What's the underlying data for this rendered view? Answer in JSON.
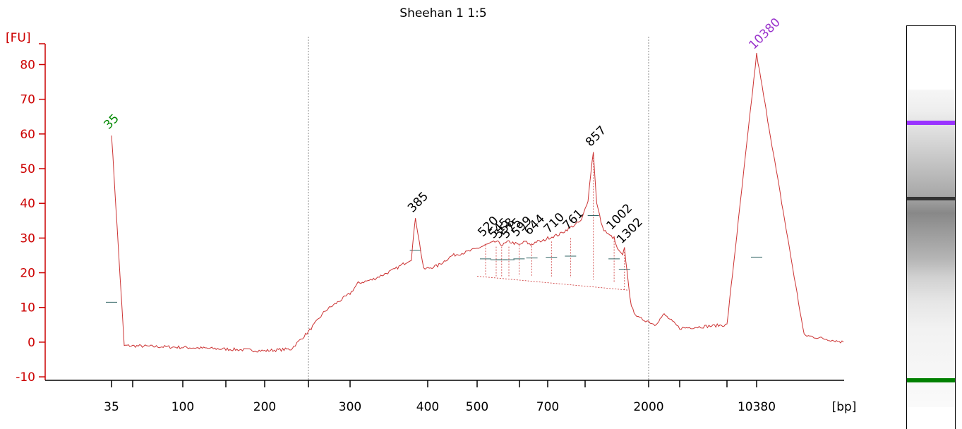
{
  "chart_data": {
    "type": "line",
    "title": "Sheehan 1 1:5",
    "ylabel": "[FU]",
    "xlabel": "[bp]",
    "ylim": [
      -11,
      86
    ],
    "yticks": [
      "-10",
      "0",
      "10",
      "20",
      "30",
      "40",
      "50",
      "60",
      "70",
      "80"
    ],
    "xticks": [
      "35",
      "100",
      "200",
      "300",
      "400",
      "500",
      "700",
      "2000",
      "10380"
    ],
    "series": [
      {
        "color": "#cc3333",
        "x": [
          35,
          50,
          100,
          150,
          200,
          230,
          250,
          270,
          300,
          311,
          330,
          360,
          380,
          385,
          395,
          420,
          450,
          480,
          500,
          520,
          545,
          560,
          575,
          600,
          620,
          640,
          660,
          680,
          700,
          730,
          760,
          790,
          820,
          840,
          857,
          880,
          920,
          960,
          1002,
          1050,
          1150,
          1250,
          1302,
          1380,
          1500,
          1700,
          2000,
          2400,
          3000,
          4000,
          6000,
          10380,
          14000,
          17000
        ],
        "y": [
          60,
          -1,
          -1.5,
          -2,
          -2.5,
          -2,
          3,
          9,
          14,
          17,
          18,
          21,
          24,
          36,
          21,
          22,
          25,
          26,
          27,
          28,
          29,
          28,
          29,
          28,
          29,
          28,
          29,
          29,
          30,
          31,
          33,
          35,
          41,
          49,
          55,
          40,
          33,
          31,
          30,
          28,
          26,
          25,
          27,
          20,
          10,
          7,
          6,
          5,
          8,
          4,
          5,
          83,
          2,
          0
        ]
      }
    ],
    "peaks": [
      {
        "label": "35",
        "x": 35,
        "y": 60,
        "color": "#008800"
      },
      {
        "label": "385",
        "x": 385,
        "y": 36,
        "color": "#000000"
      },
      {
        "label": "520",
        "x": 520,
        "y": 29,
        "color": "#000000"
      },
      {
        "label": "545",
        "x": 545,
        "y": 28.5,
        "color": "#000000"
      },
      {
        "label": "558",
        "x": 558,
        "y": 28.5,
        "color": "#000000"
      },
      {
        "label": "575",
        "x": 575,
        "y": 28.5,
        "color": "#000000"
      },
      {
        "label": "599",
        "x": 599,
        "y": 29,
        "color": "#000000"
      },
      {
        "label": "644",
        "x": 644,
        "y": 29.5,
        "color": "#000000"
      },
      {
        "label": "710",
        "x": 710,
        "y": 30,
        "color": "#000000"
      },
      {
        "label": "761",
        "x": 761,
        "y": 31,
        "color": "#000000"
      },
      {
        "label": "857",
        "x": 857,
        "y": 55,
        "color": "#000000"
      },
      {
        "label": "1002",
        "x": 1002,
        "y": 31,
        "color": "#000000"
      },
      {
        "label": "1302",
        "x": 1302,
        "y": 27,
        "color": "#000000"
      },
      {
        "label": "10380",
        "x": 10380,
        "y": 83,
        "color": "#9933cc"
      }
    ],
    "markers": [
      35,
      10380
    ],
    "grid": false,
    "legend": "none"
  },
  "gel": {
    "bands": [
      {
        "label": "10380",
        "color": "#9933ff"
      },
      {
        "label": "857",
        "color": "#333333"
      },
      {
        "label": "35",
        "color": "#008000"
      }
    ]
  }
}
